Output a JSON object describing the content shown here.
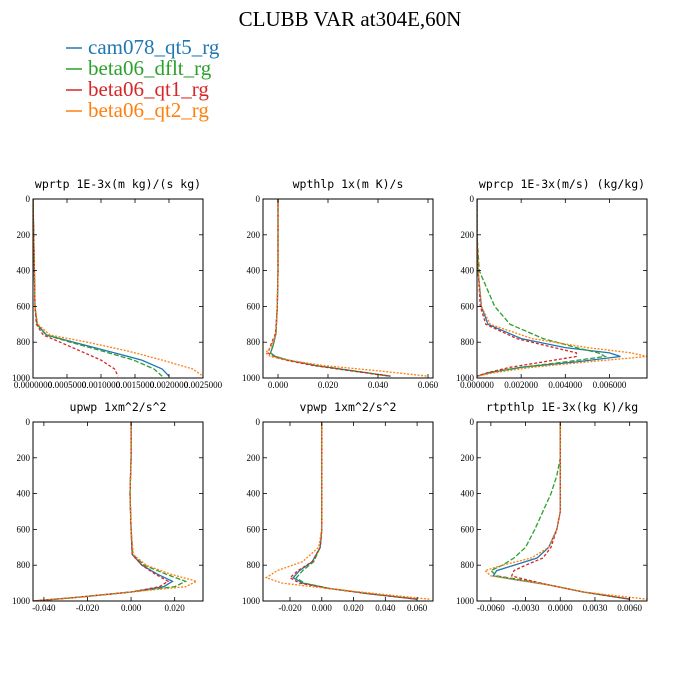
{
  "title": "CLUBB VAR at304E,60N",
  "colors": {
    "cam078_qt5_rg": "#1f77b4",
    "beta06_dflt_rg": "#2ca02c",
    "beta06_qt1_rg": "#d62728",
    "beta06_qt2_rg": "#ff7f0e"
  },
  "legend": [
    {
      "label": "cam078_qt5_rg",
      "color": "#1f77b4"
    },
    {
      "label": "beta06_dflt_rg",
      "color": "#2ca02c"
    },
    {
      "label": "beta06_qt1_rg",
      "color": "#d62728"
    },
    {
      "label": "beta06_qt2_rg",
      "color": "#ff7f0e"
    }
  ],
  "chart_data": [
    {
      "type": "line",
      "title": "wprtp  1E-3x(m kg)/(s kg)",
      "xlim": [
        0,
        0.0025
      ],
      "ylim": [
        1000,
        0
      ],
      "xticks": [
        "0.0000000",
        "0.0005000",
        "0.0010000",
        "0.0015000",
        "0.0020000",
        "0.0025000"
      ],
      "xtickvals": [
        0,
        0.0005,
        0.001,
        0.0015,
        0.002,
        0.0025
      ],
      "yticks": [
        "0",
        "200",
        "400",
        "600",
        "800",
        "1000"
      ],
      "ytickvals": [
        0,
        200,
        400,
        600,
        800,
        1000
      ],
      "y": [
        0,
        200,
        400,
        600,
        700,
        760,
        800,
        850,
        900,
        950,
        990
      ],
      "series": [
        {
          "name": "cam078_qt5_rg",
          "values": [
            0,
            1e-05,
            2e-05,
            3e-05,
            6e-05,
            0.0002,
            0.0006,
            0.0011,
            0.0016,
            0.0019,
            0.002
          ]
        },
        {
          "name": "beta06_dflt_rg",
          "values": [
            0,
            1e-05,
            2e-05,
            3e-05,
            6e-05,
            0.00019,
            0.00055,
            0.00102,
            0.00148,
            0.00178,
            0.0019
          ]
        },
        {
          "name": "beta06_qt1_rg",
          "values": [
            0,
            1e-05,
            2e-05,
            3e-05,
            5e-05,
            0.00015,
            0.0004,
            0.0007,
            0.001,
            0.0012,
            0.00125
          ]
        },
        {
          "name": "beta06_qt2_rg",
          "values": [
            0,
            1e-05,
            2e-05,
            3e-05,
            7e-05,
            0.00025,
            0.0008,
            0.0014,
            0.0019,
            0.00235,
            0.0025
          ]
        }
      ]
    },
    {
      "type": "line",
      "title": "wpthlp  1x(m K)/s",
      "xlim": [
        -0.006,
        0.062
      ],
      "ylim": [
        1000,
        0
      ],
      "xticks": [
        "0.000",
        "0.020",
        "0.040",
        "0.060"
      ],
      "xtickvals": [
        0,
        0.02,
        0.04,
        0.06
      ],
      "yticks": [
        "0",
        "200",
        "400",
        "600",
        "800",
        "1000"
      ],
      "ytickvals": [
        0,
        200,
        400,
        600,
        800,
        1000
      ],
      "y": [
        0,
        200,
        400,
        600,
        750,
        820,
        860,
        880,
        900,
        930,
        960,
        990
      ],
      "series": [
        {
          "name": "cam078_qt5_rg",
          "values": [
            0,
            0,
            0,
            -0.0003,
            -0.0008,
            -0.002,
            -0.003,
            -0.001,
            0.004,
            0.015,
            0.03,
            0.045
          ]
        },
        {
          "name": "beta06_dflt_rg",
          "values": [
            0,
            0,
            0,
            -0.0003,
            -0.0008,
            -0.002,
            -0.003,
            -0.001,
            0.004,
            0.015,
            0.03,
            0.045
          ]
        },
        {
          "name": "beta06_qt1_rg",
          "values": [
            0,
            0,
            0,
            -0.0003,
            -0.001,
            -0.003,
            -0.004,
            -0.002,
            0.003,
            0.014,
            0.029,
            0.045
          ]
        },
        {
          "name": "beta06_qt2_rg",
          "values": [
            0,
            0,
            0,
            -0.0003,
            -0.0008,
            -0.0025,
            -0.005,
            -0.003,
            0.004,
            0.018,
            0.04,
            0.06
          ]
        }
      ]
    },
    {
      "type": "line",
      "title": "wprcp  1E-3x(m/s) (kg/kg)",
      "xlim": [
        0,
        0.0077
      ],
      "ylim": [
        1000,
        0
      ],
      "xticks": [
        "0.000000",
        "0.002000",
        "0.004000",
        "0.006000"
      ],
      "xtickvals": [
        0,
        0.002,
        0.004,
        0.006
      ],
      "yticks": [
        "0",
        "200",
        "400",
        "600",
        "800",
        "1000"
      ],
      "ytickvals": [
        0,
        200,
        400,
        600,
        800,
        1000
      ],
      "y": [
        0,
        200,
        400,
        600,
        700,
        780,
        830,
        860,
        880,
        910,
        940,
        970,
        990
      ],
      "series": [
        {
          "name": "cam078_qt5_rg",
          "values": [
            0,
            0,
            5e-05,
            0.0002,
            0.0005,
            0.002,
            0.004,
            0.006,
            0.0065,
            0.0045,
            0.002,
            0.0006,
            0
          ]
        },
        {
          "name": "beta06_dflt_rg",
          "values": [
            0,
            0,
            0.0001,
            0.0008,
            0.0015,
            0.003,
            0.0045,
            0.0055,
            0.0058,
            0.004,
            0.002,
            0.0005,
            0
          ]
        },
        {
          "name": "beta06_qt1_rg",
          "values": [
            0,
            0,
            5e-05,
            0.00015,
            0.0004,
            0.0018,
            0.0035,
            0.0045,
            0.0045,
            0.003,
            0.0015,
            0.0005,
            0
          ]
        },
        {
          "name": "beta06_qt2_rg",
          "values": [
            0,
            0,
            5e-05,
            0.0002,
            0.0006,
            0.0025,
            0.005,
            0.007,
            0.0077,
            0.005,
            0.0025,
            0.0008,
            0
          ]
        }
      ]
    },
    {
      "type": "line",
      "title": "upwp  1xm^2/s^2",
      "xlim": [
        -0.045,
        0.033
      ],
      "ylim": [
        1000,
        0
      ],
      "xticks": [
        "-0.040",
        "-0.020",
        "0.000",
        "0.020"
      ],
      "xtickvals": [
        -0.04,
        -0.02,
        0,
        0.02
      ],
      "yticks": [
        "0",
        "200",
        "400",
        "600",
        "800",
        "1000"
      ],
      "ytickvals": [
        0,
        200,
        400,
        600,
        800,
        1000
      ],
      "y": [
        0,
        200,
        400,
        600,
        740,
        800,
        850,
        890,
        920,
        950,
        980,
        1000
      ],
      "series": [
        {
          "name": "cam078_qt5_rg",
          "values": [
            0,
            0,
            -0.0005,
            0,
            0.0005,
            0.005,
            0.012,
            0.019,
            0.015,
            0,
            -0.025,
            -0.045
          ]
        },
        {
          "name": "beta06_dflt_rg",
          "values": [
            0,
            0,
            -0.0005,
            0,
            0.0008,
            0.006,
            0.016,
            0.025,
            0.02,
            0,
            -0.025,
            -0.045
          ]
        },
        {
          "name": "beta06_qt1_rg",
          "values": [
            0,
            0,
            -0.0005,
            0,
            0.0005,
            0.005,
            0.011,
            0.017,
            0.013,
            0,
            -0.025,
            -0.045
          ]
        },
        {
          "name": "beta06_qt2_rg",
          "values": [
            0,
            0,
            -0.0005,
            0,
            0.001,
            0.007,
            0.018,
            0.03,
            0.025,
            0,
            -0.025,
            -0.045
          ]
        }
      ]
    },
    {
      "type": "line",
      "title": "vpwp  1xm^2/s^2",
      "xlim": [
        -0.037,
        0.07
      ],
      "ylim": [
        1000,
        0
      ],
      "xticks": [
        "-0.020",
        "0.000",
        "0.020",
        "0.040",
        "0.060"
      ],
      "xtickvals": [
        -0.02,
        0,
        0.02,
        0.04,
        0.06
      ],
      "yticks": [
        "0",
        "200",
        "400",
        "600",
        "800",
        "1000"
      ],
      "ytickvals": [
        0,
        200,
        400,
        600,
        800,
        1000
      ],
      "y": [
        0,
        200,
        400,
        600,
        700,
        780,
        830,
        870,
        900,
        930,
        960,
        990
      ],
      "series": [
        {
          "name": "cam078_qt5_rg",
          "values": [
            0,
            0,
            0,
            0,
            -0.001,
            -0.006,
            -0.014,
            -0.018,
            -0.012,
            0.005,
            0.03,
            0.06
          ]
        },
        {
          "name": "beta06_dflt_rg",
          "values": [
            0,
            0,
            0,
            0,
            -0.001,
            -0.005,
            -0.012,
            -0.016,
            -0.011,
            0.005,
            0.03,
            0.06
          ]
        },
        {
          "name": "beta06_qt1_rg",
          "values": [
            0,
            0,
            0,
            0,
            -0.001,
            -0.006,
            -0.015,
            -0.02,
            -0.014,
            0.004,
            0.03,
            0.06
          ]
        },
        {
          "name": "beta06_qt2_rg",
          "values": [
            0,
            0,
            0,
            0,
            -0.002,
            -0.012,
            -0.028,
            -0.035,
            -0.025,
            0.004,
            0.035,
            0.068
          ]
        }
      ]
    },
    {
      "type": "line",
      "title": "rtpthlp  1E-3x(kg K)/kg",
      "xlim": [
        -0.0072,
        0.0075
      ],
      "ylim": [
        1000,
        0
      ],
      "xticks": [
        "-0.0060",
        "-0.0030",
        "0.0000",
        "0.0030",
        "0.0060"
      ],
      "xtickvals": [
        -0.006,
        -0.003,
        0,
        0.003,
        0.006
      ],
      "yticks": [
        "0",
        "200",
        "400",
        "600",
        "800",
        "1000"
      ],
      "ytickvals": [
        0,
        200,
        400,
        600,
        800,
        1000
      ],
      "y": [
        0,
        200,
        300,
        400,
        500,
        600,
        700,
        760,
        800,
        830,
        860,
        880,
        910,
        950,
        990
      ],
      "series": [
        {
          "name": "cam078_qt5_rg",
          "values": [
            0,
            0,
            0,
            0,
            0,
            -0.0003,
            -0.001,
            -0.002,
            -0.004,
            -0.0055,
            -0.0058,
            -0.004,
            -0.001,
            0.002,
            0.006
          ]
        },
        {
          "name": "beta06_dflt_rg",
          "values": [
            0,
            0,
            -0.0003,
            -0.0008,
            -0.0015,
            -0.0022,
            -0.003,
            -0.004,
            -0.005,
            -0.006,
            -0.0055,
            -0.0035,
            -0.001,
            0.002,
            0.006
          ]
        },
        {
          "name": "beta06_qt1_rg",
          "values": [
            0,
            0,
            0,
            0,
            0,
            -0.0003,
            -0.0008,
            -0.0015,
            -0.003,
            -0.004,
            -0.0042,
            -0.003,
            -0.001,
            0.002,
            0.006
          ]
        },
        {
          "name": "beta06_qt2_rg",
          "values": [
            0,
            0,
            0,
            0,
            0,
            -0.0003,
            -0.001,
            -0.0025,
            -0.005,
            -0.0065,
            -0.006,
            -0.004,
            -0.001,
            0.002,
            0.0075
          ]
        }
      ]
    }
  ]
}
